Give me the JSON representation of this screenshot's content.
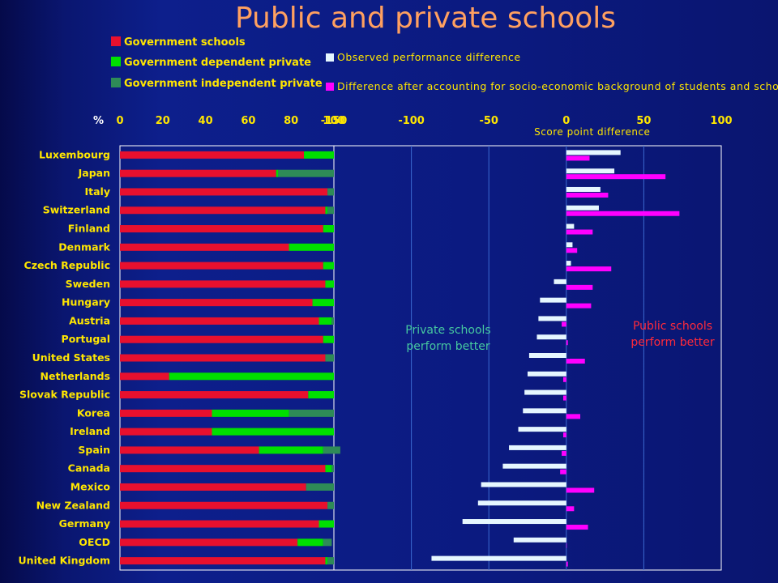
{
  "title": "Public and private schools",
  "legend_left": [
    {
      "label": "Government schools",
      "color": "#e8102e"
    },
    {
      "label": "Government dependent private",
      "color": "#00e000"
    },
    {
      "label": "Government independent private",
      "color": "#2e8b57"
    }
  ],
  "legend_right": [
    {
      "label": "Observed performance difference",
      "color": "#e6f7ff"
    },
    {
      "label": "Difference after accounting for socio-economic background of students and schools",
      "color": "#ff00ff"
    }
  ],
  "zones": {
    "private": "Private schools perform better",
    "public": "Public schools perform better"
  },
  "chart_data": [
    {
      "type": "bar",
      "stacked": true,
      "orientation": "horizontal",
      "xlabel": "%",
      "xlim": [
        0,
        100
      ],
      "ticks": [
        "0",
        "20",
        "40",
        "60",
        "80",
        "100"
      ],
      "categories": [
        "Luxembourg",
        "Japan",
        "Italy",
        "Switzerland",
        "Finland",
        "Denmark",
        "Czech Republic",
        "Sweden",
        "Hungary",
        "Austria",
        "Portugal",
        "United States",
        "Netherlands",
        "Slovak Republic",
        "Korea",
        "Ireland",
        "Spain",
        "Canada",
        "Mexico",
        "New Zealand",
        "Germany",
        "OECD",
        "United Kingdom"
      ],
      "series": [
        {
          "name": "Government schools",
          "color": "#e8102e",
          "values": [
            86,
            73,
            97,
            96,
            95,
            79,
            95,
            96,
            90,
            93,
            95,
            96,
            23,
            88,
            43,
            43,
            65,
            96,
            87,
            97,
            93,
            83,
            96
          ]
        },
        {
          "name": "Government dependent private",
          "color": "#00e000",
          "values": [
            14,
            1,
            0,
            1,
            5,
            21,
            5,
            4,
            10,
            6,
            5,
            0,
            77,
            12,
            36,
            57,
            30,
            3,
            0,
            0,
            7,
            12,
            1
          ]
        },
        {
          "name": "Government independent private",
          "color": "#2e8b57",
          "values": [
            0,
            26,
            3,
            3,
            0,
            0,
            0,
            0,
            0,
            1,
            0,
            4,
            0,
            0,
            21,
            0,
            8,
            1,
            13,
            3,
            0,
            4,
            3
          ]
        }
      ]
    },
    {
      "type": "bar",
      "orientation": "horizontal",
      "xlabel": "Score point difference",
      "xlim": [
        -150,
        100
      ],
      "ticks": [
        "-150",
        "-100",
        "-50",
        "0",
        "50",
        "100"
      ],
      "categories": [
        "Luxembourg",
        "Japan",
        "Italy",
        "Switzerland",
        "Finland",
        "Denmark",
        "Czech Republic",
        "Sweden",
        "Hungary",
        "Austria",
        "Portugal",
        "United States",
        "Netherlands",
        "Slovak Republic",
        "Korea",
        "Ireland",
        "Spain",
        "Canada",
        "Mexico",
        "New Zealand",
        "Germany",
        "OECD",
        "United Kingdom"
      ],
      "series": [
        {
          "name": "Observed performance difference",
          "color": "#e6f7ff",
          "values": [
            35,
            31,
            22,
            21,
            5,
            4,
            3,
            -8,
            -17,
            -18,
            -19,
            -24,
            -25,
            -27,
            -28,
            -31,
            -37,
            -41,
            -55,
            -57,
            -67,
            -34,
            -87
          ]
        },
        {
          "name": "Difference after accounting for socio-economic background of students and schools",
          "color": "#ff00ff",
          "values": [
            15,
            64,
            27,
            73,
            17,
            7,
            29,
            17,
            16,
            -3,
            1,
            12,
            -2,
            -2,
            9,
            -2,
            -3,
            -4,
            18,
            5,
            14,
            0,
            1
          ]
        }
      ]
    }
  ]
}
